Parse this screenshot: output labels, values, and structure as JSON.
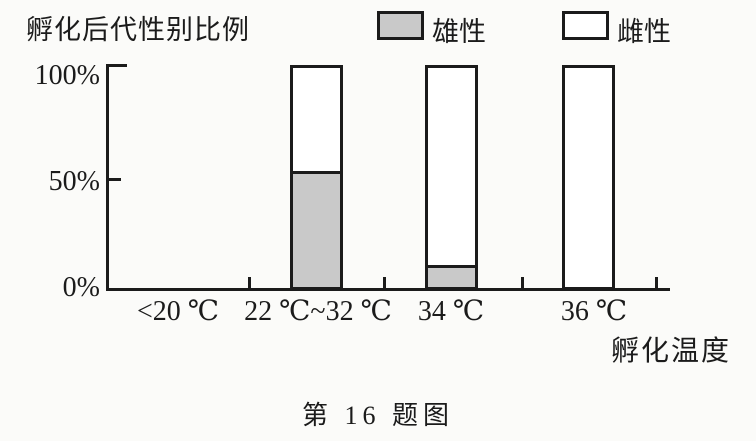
{
  "figure": {
    "caption": "第 16 题图"
  },
  "chart_data": {
    "type": "bar",
    "stacked": true,
    "title": "孵化后代性别比例",
    "xlabel": "孵化温度",
    "ylabel": "",
    "ylim": [
      0,
      100
    ],
    "yticks": [
      "100%",
      "50%",
      "0%"
    ],
    "categories": [
      "<20 ℃",
      "22 ℃~32 ℃",
      "34 ℃",
      "36 ℃"
    ],
    "series": [
      {
        "name": "雄性",
        "fill": "#c9c9c9",
        "values": [
          null,
          53,
          10,
          0
        ]
      },
      {
        "name": "雌性",
        "fill": "#ffffff",
        "values": [
          null,
          47,
          90,
          100
        ]
      }
    ],
    "legend_position": "top",
    "grid": false,
    "colors": {
      "line": "#1b1b1b",
      "background": "#fbfbf9"
    }
  }
}
